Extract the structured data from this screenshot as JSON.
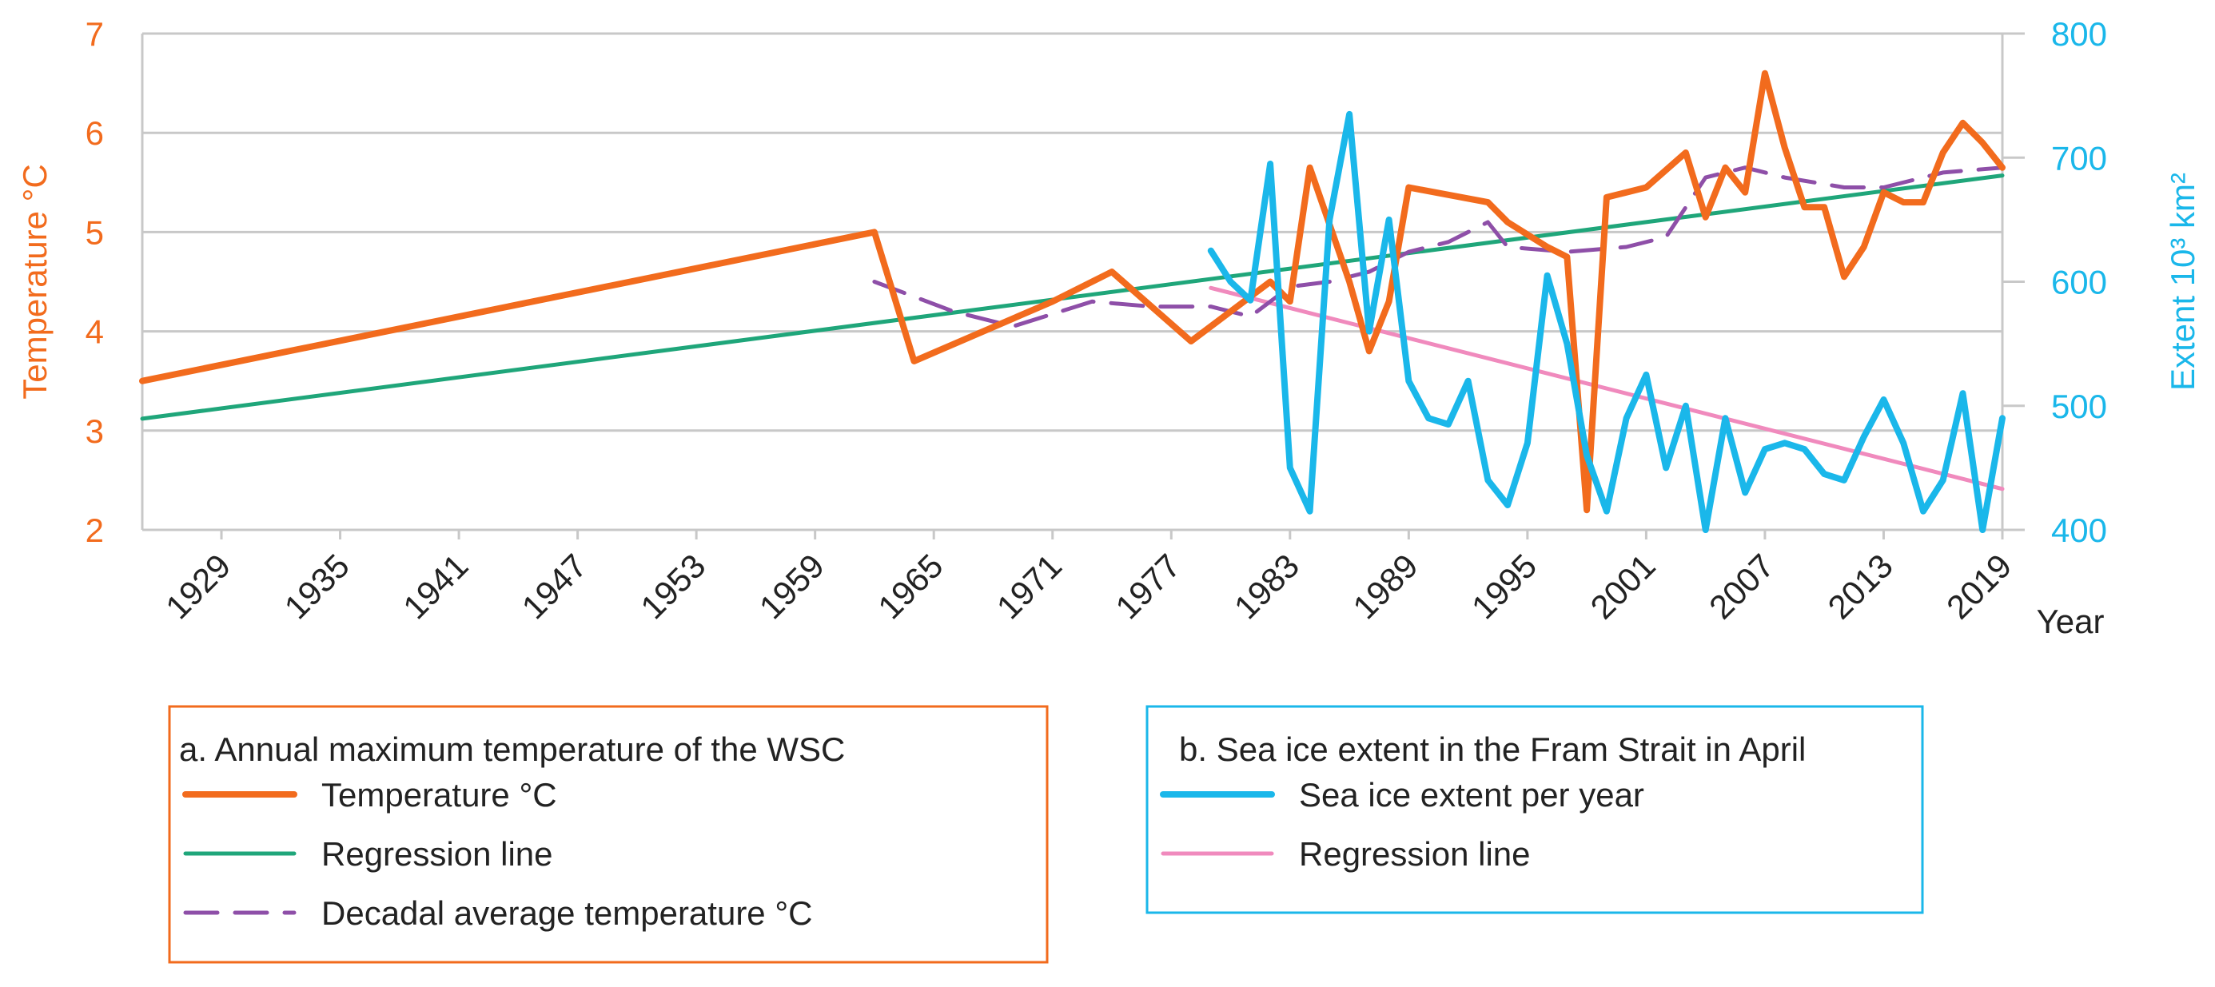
{
  "chart_data": {
    "type": "line",
    "x_axis": {
      "label": "Year",
      "range": [
        1925,
        2019
      ],
      "tick_labels": [
        "1929",
        "1935",
        "1941",
        "1947",
        "1953",
        "1959",
        "1965",
        "1971",
        "1977",
        "1983",
        "1989",
        "1995",
        "2001",
        "2007",
        "2013",
        "2019"
      ]
    },
    "y_axis_left": {
      "label": "Temperature °C",
      "range": [
        2,
        7
      ],
      "tick_labels": [
        "2",
        "3",
        "4",
        "5",
        "6",
        "7"
      ],
      "color": "#f26b1d"
    },
    "y_axis_right": {
      "label": "Extent  10³ km²",
      "range": [
        400,
        800
      ],
      "tick_labels": [
        "400",
        "500",
        "600",
        "700",
        "800"
      ],
      "color": "#1ab7ea"
    },
    "grid": true,
    "series": [
      {
        "name": "Temperature °C",
        "axis": "left",
        "color": "#f26b1d",
        "style": "solid-thick",
        "x": [
          1925,
          1962,
          1964,
          1971,
          1974,
          1978,
          1982,
          1983,
          1984,
          1986,
          1987,
          1988,
          1989,
          1993,
          1994,
          1996,
          1997,
          1998,
          1999,
          2000,
          2001,
          2003,
          2004,
          2005,
          2006,
          2007,
          2008,
          2009,
          2010,
          2011,
          2012,
          2013,
          2014,
          2015,
          2016,
          2017,
          2018,
          2019
        ],
        "y": [
          3.5,
          5.0,
          3.7,
          4.3,
          4.6,
          3.9,
          4.5,
          4.3,
          5.65,
          4.5,
          3.8,
          4.3,
          5.45,
          5.3,
          5.1,
          4.85,
          4.75,
          2.2,
          5.35,
          5.4,
          5.45,
          5.8,
          5.15,
          5.65,
          5.4,
          6.6,
          5.85,
          5.25,
          5.25,
          4.55,
          4.85,
          5.4,
          5.3,
          5.3,
          5.8,
          6.1,
          5.9,
          5.65
        ]
      },
      {
        "name": "Regression line",
        "axis": "left",
        "color": "#1fa67a",
        "style": "solid",
        "x": [
          1925,
          2019
        ],
        "y": [
          3.12,
          5.57
        ]
      },
      {
        "name": "Decadal average temperature °C",
        "axis": "left",
        "color": "#8e4fa8",
        "style": "dashed",
        "x": [
          1962,
          1966,
          1969,
          1973,
          1976,
          1979,
          1981,
          1983,
          1985,
          1987,
          1989,
          1991,
          1993,
          1994,
          1997,
          2000,
          2002,
          2004,
          2006,
          2008,
          2011,
          2013,
          2016,
          2019
        ],
        "y": [
          4.5,
          4.2,
          4.05,
          4.3,
          4.25,
          4.25,
          4.15,
          4.45,
          4.5,
          4.6,
          4.8,
          4.9,
          5.1,
          4.85,
          4.8,
          4.85,
          4.95,
          5.55,
          5.65,
          5.55,
          5.45,
          5.45,
          5.6,
          5.65
        ]
      },
      {
        "name": "Sea ice extent per year",
        "axis": "right",
        "color": "#1ab7ea",
        "style": "solid-thick",
        "x": [
          1979,
          1980,
          1981,
          1982,
          1983,
          1984,
          1985,
          1986,
          1987,
          1988,
          1989,
          1990,
          1991,
          1992,
          1993,
          1994,
          1995,
          1996,
          1997,
          1998,
          1999,
          2000,
          2001,
          2002,
          2003,
          2004,
          2005,
          2006,
          2007,
          2008,
          2009,
          2010,
          2011,
          2012,
          2013,
          2014,
          2015,
          2016,
          2017,
          2018,
          2019
        ],
        "y": [
          625,
          600,
          585,
          695,
          450,
          415,
          650,
          735,
          560,
          650,
          520,
          490,
          485,
          520,
          440,
          420,
          470,
          605,
          550,
          460,
          415,
          490,
          525,
          450,
          500,
          400,
          490,
          430,
          465,
          470,
          465,
          445,
          440,
          475,
          505,
          470,
          415,
          440,
          510,
          400,
          490
        ]
      },
      {
        "name": "Regression line",
        "axis": "right",
        "color": "#f08abd",
        "style": "solid",
        "x": [
          1979,
          2019
        ],
        "y": [
          595,
          433
        ]
      }
    ],
    "legends": [
      {
        "title": "a. Annual maximum temperature of the WSC",
        "border_color": "#f26b1d",
        "entries": [
          {
            "label": "Temperature °C",
            "color": "#f26b1d",
            "style": "solid-thick"
          },
          {
            "label": "Regression line",
            "color": "#1fa67a",
            "style": "solid"
          },
          {
            "label": "Decadal average temperature °C",
            "color": "#8e4fa8",
            "style": "dashed"
          }
        ]
      },
      {
        "title": "b. Sea ice extent in the Fram Strait in April",
        "border_color": "#1ab7ea",
        "entries": [
          {
            "label": "Sea ice extent per year",
            "color": "#1ab7ea",
            "style": "solid-thick"
          },
          {
            "label": "Regression line",
            "color": "#f08abd",
            "style": "solid"
          }
        ]
      }
    ]
  }
}
